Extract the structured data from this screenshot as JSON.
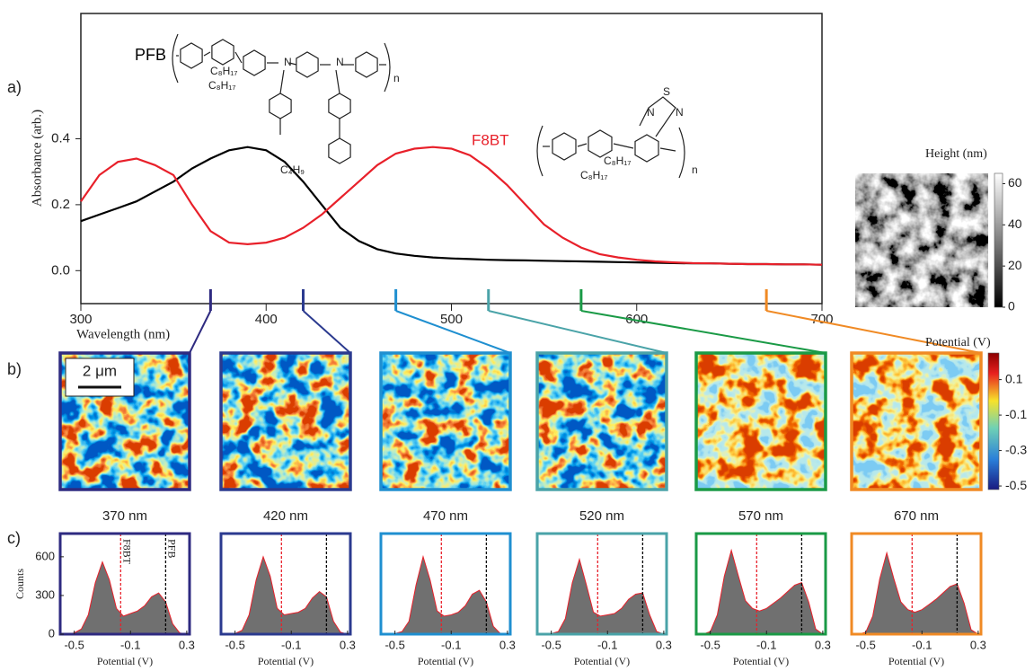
{
  "panel_labels": [
    "a)",
    "b)",
    "c)"
  ],
  "structures": {
    "pfb": [
      "C₈H₁₇",
      "C₈H₁₇",
      "N",
      "N",
      "C₄H₉",
      "n"
    ],
    "f8bt": [
      "S",
      "N",
      "N",
      "C₈H₁₇",
      "C₈H₁₇",
      "n"
    ]
  },
  "chart_data": [
    {
      "type": "line",
      "xlabel": "Wavelength (nm)",
      "ylabel": "Absorbance (arb.)",
      "x": [
        300,
        310,
        320,
        330,
        340,
        350,
        360,
        370,
        380,
        390,
        400,
        410,
        420,
        430,
        440,
        450,
        460,
        470,
        480,
        490,
        500,
        510,
        520,
        530,
        540,
        550,
        560,
        570,
        580,
        590,
        600,
        610,
        620,
        630,
        640,
        650,
        660,
        670,
        680,
        690,
        700
      ],
      "series": [
        {
          "name": "PFB",
          "color": "#000000",
          "values": [
            0.15,
            0.17,
            0.19,
            0.21,
            0.24,
            0.27,
            0.31,
            0.34,
            0.365,
            0.375,
            0.365,
            0.33,
            0.27,
            0.2,
            0.13,
            0.09,
            0.065,
            0.052,
            0.045,
            0.04,
            0.037,
            0.035,
            0.033,
            0.032,
            0.031,
            0.03,
            0.029,
            0.028,
            0.027,
            0.026,
            0.025,
            0.024,
            0.023,
            0.022,
            0.022,
            0.021,
            0.02,
            0.02,
            0.019,
            0.019,
            0.018
          ]
        },
        {
          "name": "F8BT",
          "color": "#e8202a",
          "values": [
            0.21,
            0.29,
            0.33,
            0.34,
            0.32,
            0.29,
            0.2,
            0.12,
            0.085,
            0.08,
            0.085,
            0.1,
            0.13,
            0.17,
            0.22,
            0.27,
            0.32,
            0.355,
            0.37,
            0.375,
            0.37,
            0.35,
            0.31,
            0.26,
            0.2,
            0.14,
            0.1,
            0.07,
            0.05,
            0.04,
            0.033,
            0.028,
            0.025,
            0.023,
            0.022,
            0.021,
            0.02,
            0.02,
            0.019,
            0.019,
            0.018
          ]
        }
      ],
      "xlim": [
        300,
        700
      ],
      "xticks": [
        300,
        400,
        500,
        600,
        700
      ],
      "ylim": [
        -0.1,
        0.78
      ],
      "yticks": [
        {
          "value": 0,
          "label": "0.0"
        },
        0.2,
        0.4
      ]
    },
    {
      "type": "image",
      "title": "Height (nm)",
      "clim": [
        0,
        65
      ],
      "cticks": [
        0,
        20,
        40,
        60
      ]
    },
    {
      "type": "map",
      "title": "370 nm",
      "wavelength": 370,
      "color": "#2e2a80",
      "scale_bar": "2 μm"
    },
    {
      "type": "map",
      "title": "420 nm",
      "wavelength": 420,
      "color": "#2b3a8f"
    },
    {
      "type": "map",
      "title": "470 nm",
      "wavelength": 470,
      "color": "#1f8fd0"
    },
    {
      "type": "map",
      "title": "520 nm",
      "wavelength": 520,
      "color": "#4aa3a8"
    },
    {
      "type": "map",
      "title": "570 nm",
      "wavelength": 570,
      "color": "#1a9a46"
    },
    {
      "type": "map",
      "title": "670 nm",
      "wavelength": 670,
      "color": "#f08a24"
    },
    {
      "type": "colorbar",
      "title": "Potential (V)",
      "clim": [
        -0.52,
        0.25
      ],
      "cticks": [
        0.1,
        -0.1,
        -0.3,
        -0.5
      ]
    },
    {
      "type": "area",
      "color": "#2e2a80",
      "xlabel": "Potential (V)",
      "ylabel": "Counts",
      "x": [
        -0.55,
        -0.5,
        -0.45,
        -0.4,
        -0.35,
        -0.3,
        -0.25,
        -0.2,
        -0.15,
        -0.1,
        -0.05,
        0,
        0.05,
        0.1,
        0.15,
        0.2,
        0.25,
        0.3
      ],
      "values": [
        0,
        10,
        40,
        150,
        400,
        560,
        420,
        200,
        140,
        160,
        180,
        220,
        290,
        320,
        250,
        80,
        10,
        0
      ],
      "xlim": [
        -0.6,
        0.32
      ],
      "xticks": [
        -0.5,
        -0.1,
        0.3
      ],
      "ylim": [
        0,
        780
      ],
      "yticks": [
        0,
        300,
        600
      ],
      "vlines": [
        {
          "value": -0.17,
          "color": "#e8202a",
          "label": "F8BT"
        },
        {
          "value": 0.15,
          "color": "#000000",
          "label": "PFB"
        }
      ]
    },
    {
      "type": "area",
      "color": "#2b3a8f",
      "xlabel": "Potential (V)",
      "x": [
        -0.55,
        -0.5,
        -0.45,
        -0.4,
        -0.35,
        -0.3,
        -0.25,
        -0.2,
        -0.15,
        -0.1,
        -0.05,
        0,
        0.05,
        0.1,
        0.15,
        0.2,
        0.25,
        0.3
      ],
      "values": [
        0,
        5,
        30,
        150,
        420,
        600,
        450,
        200,
        150,
        160,
        170,
        200,
        280,
        330,
        290,
        100,
        15,
        0
      ],
      "xlim": [
        -0.6,
        0.32
      ],
      "xticks": [
        -0.5,
        -0.1,
        0.3
      ],
      "ylim": [
        0,
        780
      ],
      "vlines": [
        {
          "value": -0.17,
          "color": "#e8202a"
        },
        {
          "value": 0.15,
          "color": "#000000"
        }
      ]
    },
    {
      "type": "area",
      "color": "#1f8fd0",
      "xlabel": "Potential (V)",
      "x": [
        -0.55,
        -0.5,
        -0.45,
        -0.4,
        -0.35,
        -0.3,
        -0.25,
        -0.2,
        -0.15,
        -0.1,
        -0.05,
        0,
        0.05,
        0.1,
        0.15,
        0.2,
        0.25,
        0.3
      ],
      "values": [
        0,
        5,
        20,
        100,
        380,
        600,
        420,
        180,
        140,
        150,
        170,
        220,
        310,
        340,
        250,
        60,
        5,
        0
      ],
      "xlim": [
        -0.6,
        0.32
      ],
      "xticks": [
        -0.5,
        -0.1,
        0.3
      ],
      "ylim": [
        0,
        780
      ],
      "vlines": [
        {
          "value": -0.17,
          "color": "#e8202a"
        },
        {
          "value": 0.15,
          "color": "#000000"
        }
      ]
    },
    {
      "type": "area",
      "color": "#4aa3a8",
      "xlabel": "Potential (V)",
      "x": [
        -0.55,
        -0.5,
        -0.45,
        -0.4,
        -0.35,
        -0.3,
        -0.25,
        -0.2,
        -0.15,
        -0.1,
        -0.05,
        0,
        0.05,
        0.1,
        0.15,
        0.2,
        0.25,
        0.3
      ],
      "values": [
        0,
        5,
        20,
        120,
        400,
        580,
        380,
        170,
        140,
        150,
        160,
        200,
        270,
        310,
        320,
        150,
        20,
        0
      ],
      "xlim": [
        -0.6,
        0.32
      ],
      "xticks": [
        -0.5,
        -0.1,
        0.3
      ],
      "ylim": [
        0,
        780
      ],
      "vlines": [
        {
          "value": -0.17,
          "color": "#e8202a"
        },
        {
          "value": 0.15,
          "color": "#000000"
        }
      ]
    },
    {
      "type": "area",
      "color": "#1a9a46",
      "xlabel": "Potential (V)",
      "x": [
        -0.55,
        -0.5,
        -0.45,
        -0.4,
        -0.35,
        -0.3,
        -0.25,
        -0.2,
        -0.15,
        -0.1,
        -0.05,
        0,
        0.05,
        0.1,
        0.15,
        0.2,
        0.25,
        0.3
      ],
      "values": [
        0,
        20,
        150,
        450,
        650,
        450,
        260,
        200,
        180,
        200,
        240,
        280,
        330,
        380,
        400,
        250,
        40,
        0
      ],
      "xlim": [
        -0.6,
        0.32
      ],
      "xticks": [
        -0.5,
        -0.1,
        0.3
      ],
      "ylim": [
        0,
        780
      ],
      "vlines": [
        {
          "value": -0.17,
          "color": "#e8202a"
        },
        {
          "value": 0.15,
          "color": "#000000"
        }
      ]
    },
    {
      "type": "area",
      "color": "#f08a24",
      "xlabel": "Potential (V)",
      "x": [
        -0.55,
        -0.5,
        -0.45,
        -0.4,
        -0.35,
        -0.3,
        -0.25,
        -0.2,
        -0.15,
        -0.1,
        -0.05,
        0,
        0.05,
        0.1,
        0.15,
        0.2,
        0.25,
        0.3
      ],
      "values": [
        0,
        15,
        140,
        430,
        630,
        430,
        250,
        190,
        170,
        190,
        230,
        270,
        320,
        370,
        390,
        240,
        35,
        0
      ],
      "xlim": [
        -0.6,
        0.32
      ],
      "xticks": [
        -0.5,
        -0.1,
        0.3
      ],
      "ylim": [
        0,
        780
      ],
      "vlines": [
        {
          "value": -0.17,
          "color": "#e8202a"
        },
        {
          "value": 0.15,
          "color": "#000000"
        }
      ]
    }
  ]
}
